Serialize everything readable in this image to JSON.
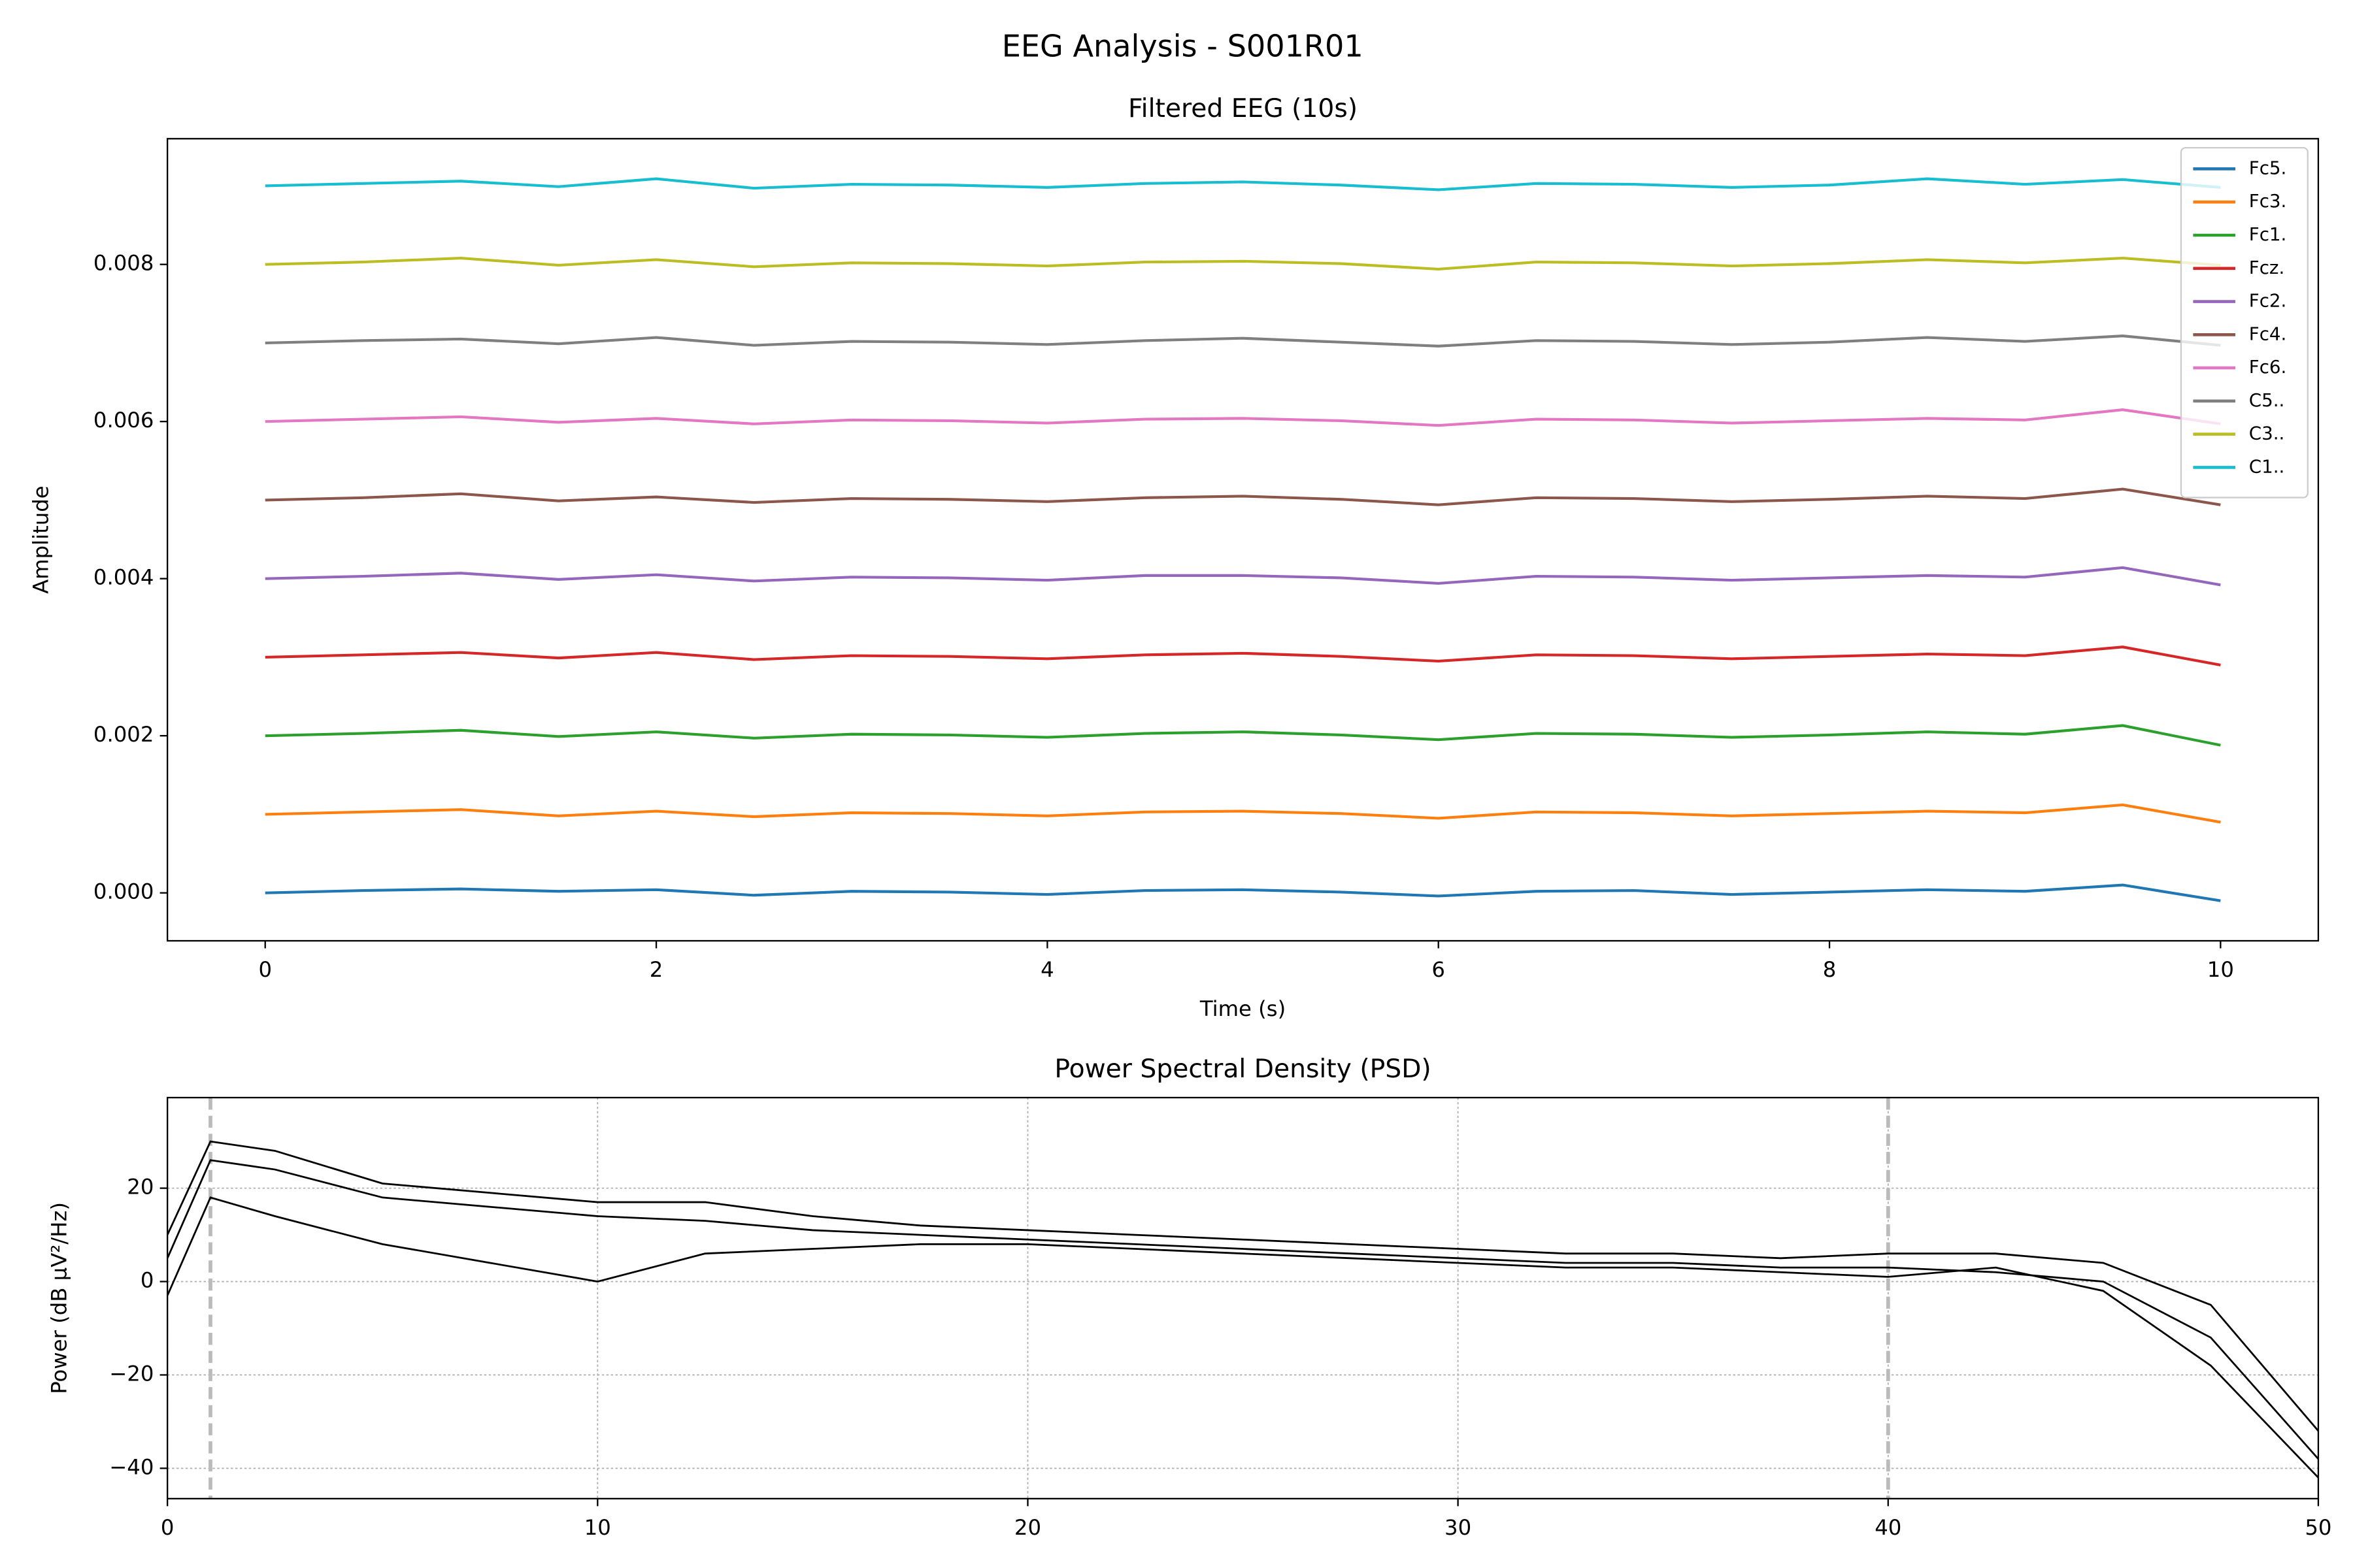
{
  "title": "EEG Analysis - S001R01",
  "chart_data": [
    {
      "type": "line",
      "title": "Filtered EEG (10s)",
      "xlabel": "Time (s)",
      "ylabel": "Amplitude",
      "x": [
        0,
        0.5,
        1,
        1.5,
        2,
        2.5,
        3,
        3.5,
        4,
        4.5,
        5,
        5.5,
        6,
        6.5,
        7,
        7.5,
        8,
        8.5,
        9,
        9.5,
        10
      ],
      "series": [
        {
          "name": "Fc5.",
          "color": "#1f77b4",
          "values": [
            0,
            3e-05,
            5e-05,
            2e-05,
            4e-05,
            -3e-05,
            2e-05,
            1e-05,
            -2e-05,
            3e-05,
            4e-05,
            1e-05,
            -4e-05,
            2e-05,
            3e-05,
            -2e-05,
            1e-05,
            4e-05,
            2e-05,
            0.0001,
            -0.0001
          ]
        },
        {
          "name": "Fc3.",
          "color": "#ff7f0e",
          "values": [
            0.001,
            0.00103,
            0.00106,
            0.00098,
            0.00104,
            0.00097,
            0.00102,
            0.00101,
            0.00098,
            0.00103,
            0.00104,
            0.00101,
            0.00095,
            0.00103,
            0.00102,
            0.00098,
            0.00101,
            0.00104,
            0.00102,
            0.00112,
            0.0009
          ]
        },
        {
          "name": "Fc1.",
          "color": "#2ca02c",
          "values": [
            0.002,
            0.00203,
            0.00207,
            0.00199,
            0.00205,
            0.00197,
            0.00202,
            0.00201,
            0.00198,
            0.00203,
            0.00205,
            0.00201,
            0.00195,
            0.00203,
            0.00202,
            0.00198,
            0.00201,
            0.00205,
            0.00202,
            0.00213,
            0.00188
          ]
        },
        {
          "name": "Fcz.",
          "color": "#d62728",
          "values": [
            0.003,
            0.00303,
            0.00306,
            0.00299,
            0.00306,
            0.00297,
            0.00302,
            0.00301,
            0.00298,
            0.00303,
            0.00305,
            0.00301,
            0.00295,
            0.00303,
            0.00302,
            0.00298,
            0.00301,
            0.00304,
            0.00302,
            0.00313,
            0.0029
          ]
        },
        {
          "name": "Fc2.",
          "color": "#9467bd",
          "values": [
            0.004,
            0.00403,
            0.00407,
            0.00399,
            0.00405,
            0.00397,
            0.00402,
            0.00401,
            0.00398,
            0.00404,
            0.00404,
            0.00401,
            0.00394,
            0.00403,
            0.00402,
            0.00398,
            0.00401,
            0.00404,
            0.00402,
            0.00414,
            0.00392
          ]
        },
        {
          "name": "Fc4.",
          "color": "#8c564b",
          "values": [
            0.005,
            0.00503,
            0.00508,
            0.00499,
            0.00504,
            0.00497,
            0.00502,
            0.00501,
            0.00498,
            0.00503,
            0.00505,
            0.00501,
            0.00494,
            0.00503,
            0.00502,
            0.00498,
            0.00501,
            0.00505,
            0.00502,
            0.00514,
            0.00494
          ]
        },
        {
          "name": "Fc6.",
          "color": "#e377c2",
          "values": [
            0.006,
            0.00603,
            0.00606,
            0.00599,
            0.00604,
            0.00597,
            0.00602,
            0.00601,
            0.00598,
            0.00603,
            0.00604,
            0.00601,
            0.00595,
            0.00603,
            0.00602,
            0.00598,
            0.00601,
            0.00604,
            0.00602,
            0.00615,
            0.00597
          ]
        },
        {
          "name": "C5..",
          "color": "#7f7f7f",
          "values": [
            0.007,
            0.00703,
            0.00705,
            0.00699,
            0.00707,
            0.00697,
            0.00702,
            0.00701,
            0.00698,
            0.00703,
            0.00706,
            0.00701,
            0.00696,
            0.00703,
            0.00702,
            0.00698,
            0.00701,
            0.00707,
            0.00702,
            0.00709,
            0.00697
          ]
        },
        {
          "name": "C3..",
          "color": "#bcbd22",
          "values": [
            0.008,
            0.00803,
            0.00808,
            0.00799,
            0.00806,
            0.00797,
            0.00802,
            0.00801,
            0.00798,
            0.00803,
            0.00804,
            0.00801,
            0.00794,
            0.00803,
            0.00802,
            0.00798,
            0.00801,
            0.00806,
            0.00802,
            0.00808,
            0.00799
          ]
        },
        {
          "name": "C1..",
          "color": "#17becf",
          "values": [
            0.009,
            0.00903,
            0.00906,
            0.00899,
            0.00909,
            0.00897,
            0.00902,
            0.00901,
            0.00898,
            0.00903,
            0.00905,
            0.00901,
            0.00895,
            0.00903,
            0.00902,
            0.00898,
            0.00901,
            0.00909,
            0.00902,
            0.00908,
            0.00898
          ]
        }
      ],
      "xlim": [
        -0.5,
        10.5
      ],
      "xticks": [
        0,
        2,
        4,
        6,
        8,
        10
      ],
      "ylim": [
        -0.00061,
        0.0096
      ],
      "yticks": [
        {
          "value": 0,
          "label": "0.000"
        },
        {
          "value": 0.002,
          "label": "0.002"
        },
        {
          "value": 0.004,
          "label": "0.004"
        },
        {
          "value": 0.006,
          "label": "0.006"
        },
        {
          "value": 0.008,
          "label": "0.008"
        }
      ],
      "grid": false,
      "legend": "upper right"
    },
    {
      "type": "line",
      "title": "Power Spectral Density (PSD)",
      "ylabel": "Power (dB µV²/Hz)",
      "x": [
        0,
        1,
        2.5,
        5,
        7.5,
        10,
        12.5,
        15,
        17.5,
        20,
        22.5,
        25,
        27.5,
        30,
        32.5,
        35,
        37.5,
        40,
        42.5,
        45,
        47.5,
        50
      ],
      "series": [
        {
          "color": "#000000",
          "values": [
            5,
            26,
            24,
            18,
            16,
            14,
            13,
            11,
            10,
            9,
            8,
            7,
            6,
            5,
            4,
            4,
            3,
            3,
            2,
            0,
            -12,
            -38
          ]
        },
        {
          "color": "#000000",
          "values": [
            10,
            30,
            28,
            21,
            19,
            17,
            17,
            14,
            12,
            11,
            10,
            9,
            8,
            7,
            6,
            6,
            5,
            6,
            6,
            4,
            -5,
            -32
          ]
        },
        {
          "color": "#000000",
          "values": [
            -3,
            18,
            14,
            8,
            4,
            0,
            6,
            7,
            8,
            8,
            7,
            6,
            5,
            4,
            3,
            3,
            2,
            1,
            3,
            -2,
            -18,
            -42
          ]
        }
      ],
      "vlines": [
        1,
        40
      ],
      "vline_color": "#bbbbbb",
      "xlim": [
        0,
        50
      ],
      "xticks": [
        0,
        10,
        20,
        30,
        40,
        50
      ],
      "ylim": [
        -46.5,
        39.4
      ],
      "yticks": [
        {
          "value": -40,
          "label": "−40"
        },
        {
          "value": -20,
          "label": "−20"
        },
        0,
        20
      ],
      "grid": true
    }
  ]
}
